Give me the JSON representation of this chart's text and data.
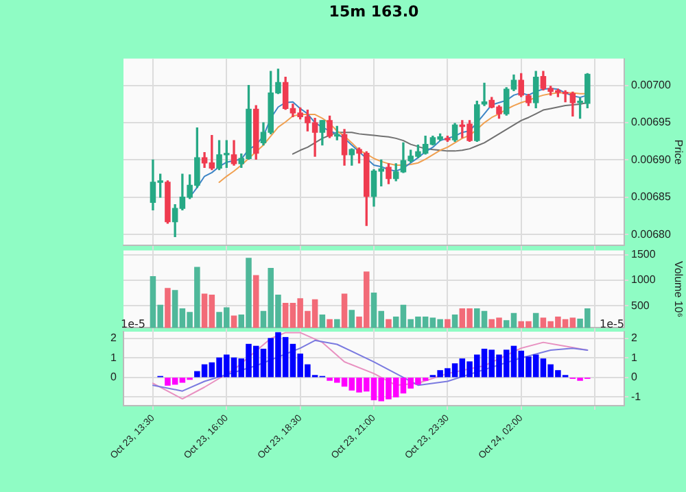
{
  "chart_data": [
    {
      "type": "candlestick",
      "title": "15m 163.0",
      "ylabel": "Price",
      "grid": true,
      "tick_labels": "y",
      "x": [
        "--10-23T13:30",
        "--10-23T13:45",
        "--10-23T14:00",
        "--10-23T14:15",
        "--10-23T14:30",
        "--10-23T14:45",
        "--10-23T15:00",
        "--10-23T15:15",
        "--10-23T15:30",
        "--10-23T15:45",
        "--10-23T16:00",
        "--10-23T16:15",
        "--10-23T16:30",
        "--10-23T16:45",
        "--10-23T17:00",
        "--10-23T17:15",
        "--10-23T17:30",
        "--10-23T17:45",
        "--10-23T18:00",
        "--10-23T18:15",
        "--10-23T18:30",
        "--10-23T18:45",
        "--10-23T19:00",
        "--10-23T19:15",
        "--10-23T19:30",
        "--10-23T19:45",
        "--10-23T20:00",
        "--10-23T20:15",
        "--10-23T20:30",
        "--10-23T20:45",
        "--10-23T21:00",
        "--10-23T21:15",
        "--10-23T21:30",
        "--10-23T21:45",
        "--10-23T22:00",
        "--10-23T22:15",
        "--10-23T22:30",
        "--10-23T22:45",
        "--10-23T23:00",
        "--10-23T23:15",
        "--10-23T23:30",
        "--10-23T23:45",
        "--10-24T00:00",
        "--10-24T00:15",
        "--10-24T00:30",
        "--10-24T00:45",
        "--10-24T01:00",
        "--10-24T01:15",
        "--10-24T01:30",
        "--10-24T01:45",
        "--10-24T02:00",
        "--10-24T02:15",
        "--10-24T02:30",
        "--10-24T02:45",
        "--10-24T03:00",
        "--10-24T03:15",
        "--10-24T03:30",
        "--10-24T03:45",
        "--10-24T04:00",
        "--10-24T04:15"
      ],
      "xlim": [
        "--10-23T12:30",
        "--10-24T05:30"
      ],
      "xticks": [
        "--10-23T13:30",
        "--10-23T16:00",
        "--10-23T18:30",
        "--10-23T21:00",
        "--10-23T23:30",
        "--10-24T02:00",
        "--10-24T04:30"
      ],
      "ylim": [
        0.006785,
        0.007036
      ],
      "yticks": [
        {
          "value": 0.0068,
          "label": "0.00680"
        },
        {
          "value": 0.00685,
          "label": "0.00685"
        },
        {
          "value": 0.0069,
          "label": "0.00690"
        },
        {
          "value": 0.00695,
          "label": "0.00695"
        },
        {
          "value": 0.007,
          "label": "0.00700"
        }
      ],
      "ohlc": [
        [
          0.006843,
          0.0069,
          0.006833,
          0.00687
        ],
        [
          0.00687,
          0.006881,
          0.00685,
          0.006872
        ],
        [
          0.00687,
          0.006872,
          0.006815,
          0.006817
        ],
        [
          0.006817,
          0.00684,
          0.006797,
          0.006835
        ],
        [
          0.006835,
          0.006881,
          0.006833,
          0.00685
        ],
        [
          0.00685,
          0.00688,
          0.006848,
          0.006866
        ],
        [
          0.006866,
          0.006943,
          0.006863,
          0.006903
        ],
        [
          0.006903,
          0.00691,
          0.00689,
          0.006896
        ],
        [
          0.006896,
          0.006933,
          0.006887,
          0.006889
        ],
        [
          0.006889,
          0.006926,
          0.006887,
          0.006907
        ],
        [
          0.006907,
          0.006926,
          0.00689,
          0.006908
        ],
        [
          0.006907,
          0.006926,
          0.006893,
          0.006895
        ],
        [
          0.006895,
          0.006908,
          0.00689,
          0.006902
        ],
        [
          0.006902,
          0.007,
          0.006901,
          0.006968
        ],
        [
          0.006968,
          0.006973,
          0.006901,
          0.006909
        ],
        [
          0.006923,
          0.00695,
          0.00692,
          0.006937
        ],
        [
          0.006937,
          0.007019,
          0.006935,
          0.00699
        ],
        [
          0.00699,
          0.007022,
          0.006989,
          0.007004
        ],
        [
          0.007004,
          0.007011,
          0.006968,
          0.006969
        ],
        [
          0.006969,
          0.006975,
          0.006958,
          0.006963
        ],
        [
          0.006963,
          0.00697,
          0.006955,
          0.006958
        ],
        [
          0.006958,
          0.006967,
          0.006939,
          0.00695
        ],
        [
          0.00695,
          0.006956,
          0.006905,
          0.006937
        ],
        [
          0.006937,
          0.006953,
          0.00692,
          0.006953
        ],
        [
          0.006953,
          0.006959,
          0.00693,
          0.006932
        ],
        [
          0.006932,
          0.006945,
          0.006927,
          0.006934
        ],
        [
          0.006934,
          0.006941,
          0.006893,
          0.006907
        ],
        [
          0.006907,
          0.006915,
          0.006893,
          0.006914
        ],
        [
          0.006914,
          0.006916,
          0.006896,
          0.006909
        ],
        [
          0.006909,
          0.006911,
          0.006812,
          0.006851
        ],
        [
          0.006851,
          0.006887,
          0.006838,
          0.006885
        ],
        [
          0.006885,
          0.0069,
          0.006865,
          0.006888
        ],
        [
          0.00689,
          0.006895,
          0.006868,
          0.006875
        ],
        [
          0.006875,
          0.006895,
          0.006872,
          0.006884
        ],
        [
          0.006884,
          0.006923,
          0.006883,
          0.006899
        ],
        [
          0.006899,
          0.006913,
          0.006897,
          0.006905
        ],
        [
          0.006905,
          0.00692,
          0.006903,
          0.006911
        ],
        [
          0.006909,
          0.006932,
          0.006908,
          0.006921
        ],
        [
          0.006921,
          0.006932,
          0.00692,
          0.00693
        ],
        [
          0.006928,
          0.006935,
          0.006926,
          0.006931
        ],
        [
          0.006929,
          0.006932,
          0.006925,
          0.006927
        ],
        [
          0.006927,
          0.006949,
          0.006925,
          0.006947
        ],
        [
          0.006947,
          0.006953,
          0.00693,
          0.006945
        ],
        [
          0.006948,
          0.006953,
          0.006925,
          0.006926
        ],
        [
          0.006926,
          0.006979,
          0.006925,
          0.006974
        ],
        [
          0.006975,
          0.007003,
          0.006973,
          0.006978
        ],
        [
          0.00698,
          0.006984,
          0.00697,
          0.006971
        ],
        [
          0.006971,
          0.006973,
          0.006956,
          0.006962
        ],
        [
          0.006962,
          0.006997,
          0.00696,
          0.006995
        ],
        [
          0.006995,
          0.007014,
          0.006993,
          0.007007
        ],
        [
          0.007007,
          0.007016,
          0.006985,
          0.006987
        ],
        [
          0.006986,
          0.006988,
          0.006973,
          0.006977
        ],
        [
          0.006977,
          0.007019,
          0.00697,
          0.007011
        ],
        [
          0.007012,
          0.007019,
          0.006994,
          0.006996
        ],
        [
          0.006996,
          0.006999,
          0.006987,
          0.006992
        ],
        [
          0.006992,
          0.006995,
          0.006985,
          0.006991
        ],
        [
          0.00699,
          0.006993,
          0.006978,
          0.006989
        ],
        [
          0.006989,
          0.006991,
          0.006959,
          0.006977
        ],
        [
          0.006977,
          0.006983,
          0.006956,
          0.006979
        ],
        [
          0.006976,
          0.007016,
          0.00697,
          0.007015
        ]
      ],
      "colors": [
        "#26a985",
        "#26a985",
        "#ef3b4f",
        "#26a985",
        "#26a985",
        "#26a985",
        "#26a985",
        "#ef3b4f",
        "#ef3b4f",
        "#26a985",
        "#26a985",
        "#ef3b4f",
        "#26a985",
        "#26a985",
        "#ef3b4f",
        "#26a985",
        "#26a985",
        "#26a985",
        "#ef3b4f",
        "#ef3b4f",
        "#ef3b4f",
        "#ef3b4f",
        "#ef3b4f",
        "#26a985",
        "#ef3b4f",
        "#26a985",
        "#ef3b4f",
        "#26a985",
        "#ef3b4f",
        "#ef3b4f",
        "#26a985",
        "#26a985",
        "#ef3b4f",
        "#26a985",
        "#26a985",
        "#26a985",
        "#26a985",
        "#26a985",
        "#26a985",
        "#26a985",
        "#ef3b4f",
        "#26a985",
        "#ef3b4f",
        "#ef3b4f",
        "#26a985",
        "#26a985",
        "#ef3b4f",
        "#ef3b4f",
        "#26a985",
        "#26a985",
        "#ef3b4f",
        "#ef3b4f",
        "#26a985",
        "#ef3b4f",
        "#ef3b4f",
        "#ef3b4f",
        "#ef3b4f",
        "#ef3b4f",
        "#26a985",
        "#26a985"
      ],
      "series": [
        {
          "type": "line",
          "color": "#3d85c6",
          "values": [
            null,
            null,
            null,
            null,
            null,
            0.00685,
            0.006863,
            0.006878,
            0.006883,
            0.006891,
            0.006897,
            0.006899,
            0.006901,
            0.006914,
            0.00692,
            0.006932,
            0.006956,
            0.006971,
            0.006977,
            0.006978,
            0.006969,
            0.006962,
            0.00695,
            0.006944,
            0.006939,
            0.006935,
            0.006929,
            0.00692,
            0.006911,
            0.006902,
            0.006893,
            0.006891,
            0.006887,
            0.006885,
            0.006889,
            0.006896,
            0.006903,
            0.006911,
            0.006917,
            0.006926,
            0.006929,
            0.006932,
            0.006937,
            0.006939,
            0.00695,
            0.006962,
            0.006974,
            0.006977,
            0.00698,
            0.006987,
            0.00699,
            0.006987,
            0.006992,
            0.006995,
            0.006996,
            0.006995,
            0.00699,
            0.006986,
            0.006984,
            0.006987
          ]
        },
        {
          "type": "line",
          "color": "#f0a050",
          "values": [
            null,
            null,
            null,
            null,
            null,
            null,
            null,
            null,
            null,
            0.00687,
            0.006878,
            0.006885,
            0.006893,
            0.006902,
            0.006911,
            0.00692,
            0.006932,
            0.006944,
            0.006951,
            0.006959,
            0.006961,
            0.006961,
            0.006961,
            0.006956,
            0.006949,
            0.006939,
            0.006932,
            0.006923,
            0.006913,
            0.006908,
            0.006902,
            0.006898,
            0.006895,
            0.006893,
            0.006893,
            0.006894,
            0.006896,
            0.006901,
            0.006907,
            0.006913,
            0.006917,
            0.006923,
            0.006929,
            0.006933,
            0.006941,
            0.00695,
            0.006957,
            0.006962,
            0.006968,
            0.006973,
            0.006977,
            0.00698,
            0.006984,
            0.006987,
            0.006989,
            0.00699,
            0.00699,
            0.00699,
            0.006989,
            0.006989
          ]
        },
        {
          "type": "line",
          "color": "#707070",
          "values": [
            null,
            null,
            null,
            null,
            null,
            null,
            null,
            null,
            null,
            null,
            null,
            null,
            null,
            null,
            null,
            null,
            null,
            null,
            null,
            0.006908,
            0.006913,
            0.006917,
            0.006923,
            0.006929,
            0.006933,
            0.006937,
            0.006937,
            0.006937,
            0.006935,
            0.006934,
            0.006933,
            0.006932,
            0.006931,
            0.006929,
            0.006926,
            0.006921,
            0.006918,
            0.006915,
            0.006914,
            0.006913,
            0.006912,
            0.006912,
            0.006913,
            0.006915,
            0.006919,
            0.006923,
            0.006929,
            0.006935,
            0.006941,
            0.006947,
            0.006953,
            0.006957,
            0.006962,
            0.006967,
            0.006969,
            0.006971,
            0.006973,
            0.006974,
            0.006975,
            0.006977
          ]
        }
      ]
    },
    {
      "type": "bar",
      "ylabel": "Volume 10⁶",
      "grid": true,
      "tick_labels": "y",
      "x": [
        "--10-23T13:30",
        "--10-23T13:45",
        "--10-23T14:00",
        "--10-23T14:15",
        "--10-23T14:30",
        "--10-23T14:45",
        "--10-23T15:00",
        "--10-23T15:15",
        "--10-23T15:30",
        "--10-23T15:45",
        "--10-23T16:00",
        "--10-23T16:15",
        "--10-23T16:30",
        "--10-23T16:45",
        "--10-23T17:00",
        "--10-23T17:15",
        "--10-23T17:30",
        "--10-23T17:45",
        "--10-23T18:00",
        "--10-23T18:15",
        "--10-23T18:30",
        "--10-23T18:45",
        "--10-23T19:00",
        "--10-23T19:15",
        "--10-23T19:30",
        "--10-23T19:45",
        "--10-23T20:00",
        "--10-23T20:15",
        "--10-23T20:30",
        "--10-23T20:45",
        "--10-23T21:00",
        "--10-23T21:15",
        "--10-23T21:30",
        "--10-23T21:45",
        "--10-23T22:00",
        "--10-23T22:15",
        "--10-23T22:30",
        "--10-23T22:45",
        "--10-23T23:00",
        "--10-23T23:15",
        "--10-23T23:30",
        "--10-23T23:45",
        "--10-24T00:00",
        "--10-24T00:15",
        "--10-24T00:30",
        "--10-24T00:45",
        "--10-24T01:00",
        "--10-24T01:15",
        "--10-24T01:30",
        "--10-24T01:45",
        "--10-24T02:00",
        "--10-24T02:15",
        "--10-24T02:30",
        "--10-24T02:45",
        "--10-24T03:00",
        "--10-24T03:15",
        "--10-24T03:30",
        "--10-24T03:45",
        "--10-24T04:00",
        "--10-24T04:15"
      ],
      "xlim": [
        "--10-23T12:30",
        "--10-24T05:30"
      ],
      "xticks": [
        "--10-23T13:30",
        "--10-23T16:00",
        "--10-23T18:30",
        "--10-23T21:00",
        "--10-23T23:30",
        "--10-24T02:00",
        "--10-24T04:30"
      ],
      "ylim": [
        70,
        1580
      ],
      "yticks": [
        500,
        1000,
        1500
      ],
      "values": [
        1070,
        510,
        840,
        800,
        440,
        370,
        1250,
        730,
        710,
        370,
        460,
        300,
        320,
        1430,
        1090,
        390,
        1230,
        710,
        550,
        550,
        640,
        390,
        620,
        320,
        230,
        230,
        730,
        410,
        280,
        1160,
        750,
        390,
        230,
        280,
        510,
        230,
        280,
        280,
        260,
        230,
        230,
        320,
        440,
        440,
        440,
        390,
        230,
        260,
        210,
        350,
        190,
        190,
        350,
        260,
        190,
        280,
        230,
        260,
        240,
        440
      ],
      "colors": [
        "#4fb89a",
        "#4fb89a",
        "#f26b78",
        "#4fb89a",
        "#4fb89a",
        "#4fb89a",
        "#4fb89a",
        "#f26b78",
        "#f26b78",
        "#4fb89a",
        "#4fb89a",
        "#f26b78",
        "#4fb89a",
        "#4fb89a",
        "#f26b78",
        "#4fb89a",
        "#4fb89a",
        "#4fb89a",
        "#f26b78",
        "#f26b78",
        "#f26b78",
        "#f26b78",
        "#f26b78",
        "#4fb89a",
        "#f26b78",
        "#4fb89a",
        "#f26b78",
        "#4fb89a",
        "#f26b78",
        "#f26b78",
        "#4fb89a",
        "#4fb89a",
        "#f26b78",
        "#4fb89a",
        "#4fb89a",
        "#4fb89a",
        "#4fb89a",
        "#4fb89a",
        "#4fb89a",
        "#4fb89a",
        "#f26b78",
        "#4fb89a",
        "#f26b78",
        "#f26b78",
        "#4fb89a",
        "#4fb89a",
        "#f26b78",
        "#f26b78",
        "#4fb89a",
        "#4fb89a",
        "#f26b78",
        "#f26b78",
        "#4fb89a",
        "#f26b78",
        "#f26b78",
        "#f26b78",
        "#f26b78",
        "#f26b78",
        "#4fb89a",
        "#4fb89a"
      ]
    },
    {
      "type": "bar",
      "grid": true,
      "annotations": [
        "1e-5",
        "1e-5"
      ],
      "x": [
        "--10-23T13:45",
        "--10-23T14:00",
        "--10-23T14:15",
        "--10-23T14:30",
        "--10-23T14:45",
        "--10-23T15:00",
        "--10-23T15:15",
        "--10-23T15:30",
        "--10-23T15:45",
        "--10-23T16:00",
        "--10-23T16:15",
        "--10-23T16:30",
        "--10-23T16:45",
        "--10-23T17:00",
        "--10-23T17:15",
        "--10-23T17:30",
        "--10-23T17:45",
        "--10-23T18:00",
        "--10-23T18:15",
        "--10-23T18:30",
        "--10-23T18:45",
        "--10-23T19:00",
        "--10-23T19:15",
        "--10-23T19:30",
        "--10-23T19:45",
        "--10-23T20:00",
        "--10-23T20:15",
        "--10-23T20:30",
        "--10-23T20:45",
        "--10-23T21:00",
        "--10-23T21:15",
        "--10-23T21:30",
        "--10-23T21:45",
        "--10-23T22:00",
        "--10-23T22:15",
        "--10-23T22:30",
        "--10-23T22:45",
        "--10-23T23:00",
        "--10-23T23:15",
        "--10-23T23:30",
        "--10-23T23:45",
        "--10-24T00:00",
        "--10-24T00:15",
        "--10-24T00:30",
        "--10-24T00:45",
        "--10-24T01:00",
        "--10-24T01:15",
        "--10-24T01:30",
        "--10-24T01:45",
        "--10-24T02:00",
        "--10-24T02:15",
        "--10-24T02:30",
        "--10-24T02:45",
        "--10-24T03:00",
        "--10-24T03:15",
        "--10-24T03:30",
        "--10-24T03:45",
        "--10-24T04:00",
        "--10-24T04:15"
      ],
      "xlim": [
        "--10-23T12:30",
        "--10-24T05:30"
      ],
      "xticks": [
        {
          "value": "--10-23T13:30",
          "label": "Oct 23, 13:30"
        },
        {
          "value": "--10-23T16:00",
          "label": "Oct 23, 16:00"
        },
        {
          "value": "--10-23T18:30",
          "label": "Oct 23, 18:30"
        },
        {
          "value": "--10-23T21:00",
          "label": "Oct 23, 21:00"
        },
        {
          "value": "--10-23T23:30",
          "label": "Oct 23, 23:30"
        },
        {
          "value": "--10-24T02:00",
          "label": "Oct 24, 02:00"
        },
        {
          "value": "--10-24T04:30",
          "label": null
        }
      ],
      "ylim": [
        -1.45,
        2.35
      ],
      "yticks": [
        -1,
        0,
        1,
        2
      ],
      "y2lim": [
        -1.45,
        2.35
      ],
      "y2ticks": [
        0,
        1,
        2
      ],
      "series": [
        {
          "type": "bar",
          "values": [
            0.05,
            -0.4,
            -0.35,
            -0.25,
            -0.1,
            0.3,
            0.65,
            0.75,
            1.0,
            1.15,
            1.0,
            0.95,
            1.7,
            1.6,
            1.45,
            2.0,
            2.3,
            2.05,
            1.7,
            1.2,
            0.65,
            0.1,
            0.05,
            -0.15,
            -0.25,
            -0.45,
            -0.65,
            -0.75,
            -0.7,
            -1.15,
            -1.2,
            -1.1,
            -1.0,
            -0.8,
            -0.55,
            -0.35,
            -0.15,
            0.1,
            0.35,
            0.45,
            0.7,
            0.95,
            0.8,
            1.15,
            1.45,
            1.4,
            1.15,
            1.4,
            1.6,
            1.35,
            1.05,
            1.15,
            0.95,
            0.65,
            0.35,
            0.1,
            -0.05,
            -0.15,
            -0.05
          ],
          "colors": [
            "#0000ff",
            "#ff00ff",
            "#ff00ff",
            "#ff00ff",
            "#ff00ff",
            "#0000ff",
            "#0000ff",
            "#0000ff",
            "#0000ff",
            "#0000ff",
            "#0000ff",
            "#0000ff",
            "#0000ff",
            "#0000ff",
            "#0000ff",
            "#0000ff",
            "#0000ff",
            "#0000ff",
            "#0000ff",
            "#0000ff",
            "#0000ff",
            "#0000ff",
            "#0000ff",
            "#ff00ff",
            "#ff00ff",
            "#ff00ff",
            "#ff00ff",
            "#ff00ff",
            "#ff00ff",
            "#ff00ff",
            "#ff00ff",
            "#ff00ff",
            "#ff00ff",
            "#ff00ff",
            "#ff00ff",
            "#ff00ff",
            "#ff00ff",
            "#0000ff",
            "#0000ff",
            "#0000ff",
            "#0000ff",
            "#0000ff",
            "#0000ff",
            "#0000ff",
            "#0000ff",
            "#0000ff",
            "#0000ff",
            "#0000ff",
            "#0000ff",
            "#0000ff",
            "#0000ff",
            "#0000ff",
            "#0000ff",
            "#0000ff",
            "#0000ff",
            "#0000ff",
            "#ff00ff",
            "#ff00ff",
            "#ff00ff"
          ]
        },
        {
          "type": "line",
          "color": "#7a7ae0",
          "x": [
            "--10-23T13:30",
            "--10-23T14:30",
            "--10-23T15:15",
            "--10-23T17:00",
            "--10-23T18:30",
            "--10-23T19:00",
            "--10-23T19:45",
            "--10-23T21:00",
            "--10-23T21:45",
            "--10-23T22:30",
            "--10-23T23:30",
            "--10-24T00:45",
            "--10-24T02:00",
            "--10-24T03:00",
            "--10-24T03:45",
            "--10-24T04:15"
          ],
          "values": [
            -0.4,
            -0.7,
            -0.2,
            0.6,
            1.5,
            1.9,
            1.7,
            0.8,
            0.2,
            -0.4,
            -0.2,
            0.4,
            1.0,
            1.4,
            1.5,
            1.4
          ]
        },
        {
          "type": "line",
          "color": "#e890c0",
          "x": [
            "--10-23T13:30",
            "--10-23T14:30",
            "--10-23T15:15",
            "--10-23T16:15",
            "--10-23T17:30",
            "--10-23T18:00",
            "--10-23T18:30",
            "--10-23T19:15",
            "--10-23T20:00",
            "--10-23T21:00",
            "--10-23T21:45",
            "--10-23T22:30",
            "--10-23T23:30",
            "--10-24T00:45",
            "--10-24T02:00",
            "--10-24T02:45",
            "--10-24T03:30",
            "--10-24T04:15"
          ],
          "values": [
            -0.3,
            -1.1,
            -0.5,
            0.4,
            2.0,
            2.3,
            2.3,
            1.8,
            0.8,
            0.2,
            -0.4,
            -0.3,
            0.2,
            0.6,
            1.5,
            1.8,
            1.6,
            1.4
          ]
        }
      ]
    }
  ]
}
